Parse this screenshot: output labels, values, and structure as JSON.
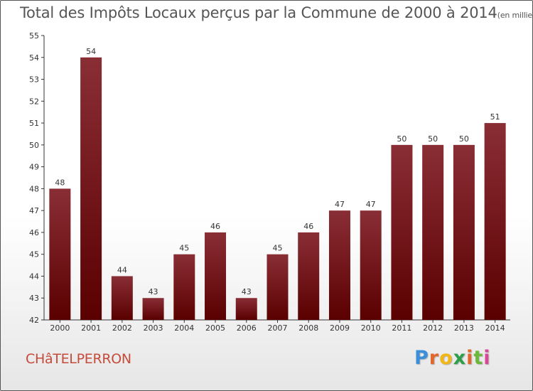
{
  "title": "Total des Impôts Locaux perçus par la Commune de 2000 à 2014",
  "title_unit": "(en milliers d'€)",
  "commune": "CHâTELPERRON",
  "logo": {
    "text": "Proxiti",
    "letters": [
      "P",
      "r",
      "o",
      "x",
      "i",
      "t",
      "i"
    ],
    "colors": [
      "#3b8fd9",
      "#e3672a",
      "#f2b619",
      "#2e9e48",
      "#e3672a",
      "#6cb83a",
      "#d94896"
    ]
  },
  "colors": {
    "bar_top": "#8a2e36",
    "bar_bottom": "#5a0000",
    "axis": "#333333",
    "text": "#333333"
  },
  "chart_data": {
    "type": "bar",
    "title": "Total des Impôts Locaux perçus par la Commune de 2000 à 2014",
    "xlabel": "",
    "ylabel": "en milliers d'€",
    "categories": [
      "2000",
      "2001",
      "2002",
      "2003",
      "2004",
      "2005",
      "2006",
      "2007",
      "2008",
      "2009",
      "2010",
      "2011",
      "2012",
      "2013",
      "2014"
    ],
    "values": [
      48,
      54,
      44,
      43,
      45,
      46,
      43,
      45,
      46,
      47,
      47,
      50,
      50,
      50,
      51
    ],
    "ylim": [
      42,
      55
    ],
    "yticks": [
      42,
      43,
      44,
      45,
      46,
      47,
      48,
      49,
      50,
      51,
      52,
      53,
      54,
      55
    ],
    "grid": false
  }
}
